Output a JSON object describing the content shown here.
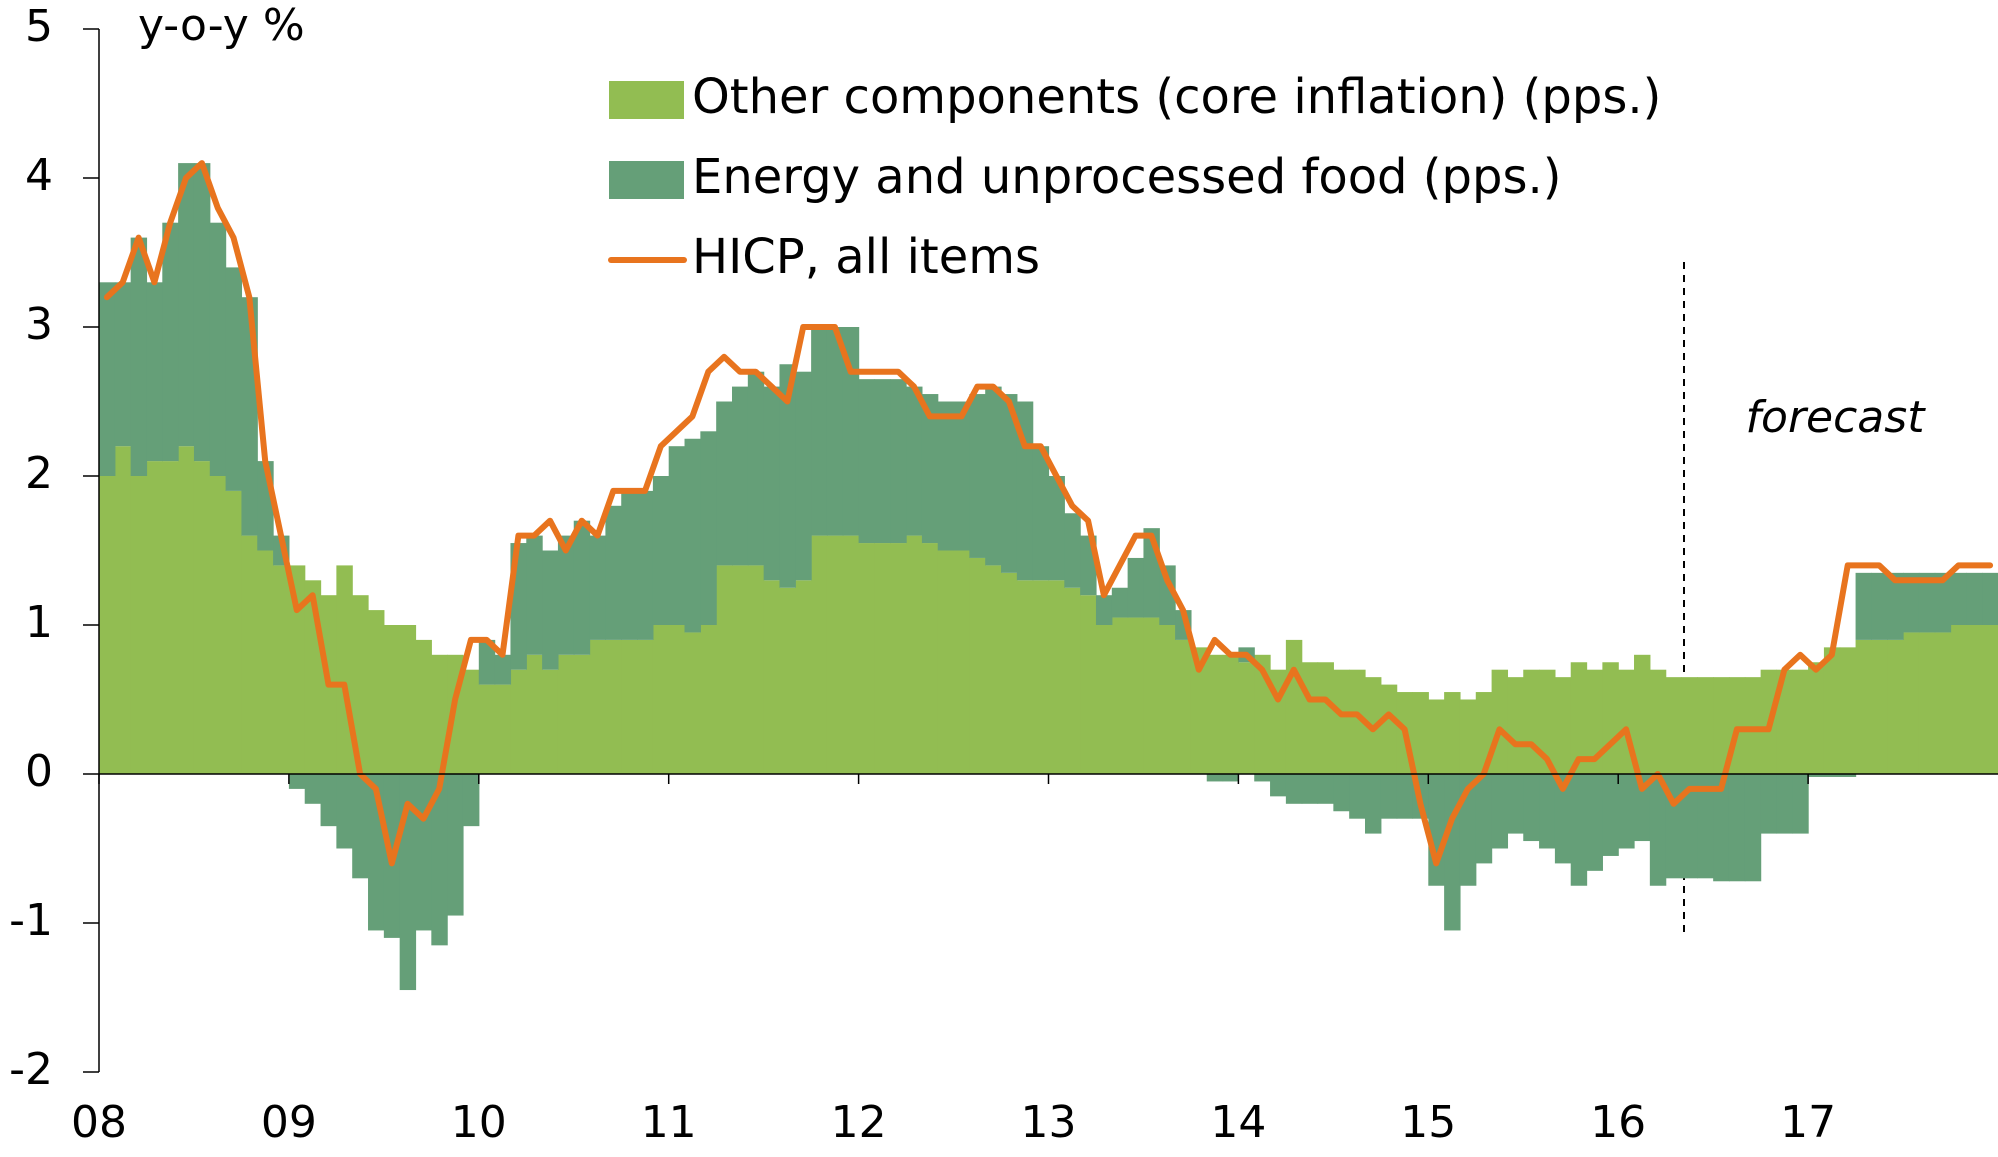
{
  "chart_data": {
    "type": "bar",
    "unit_label": "y-o-y %",
    "annotations": [
      "forecast"
    ],
    "categories": [
      "08",
      null,
      null,
      null,
      null,
      null,
      null,
      null,
      null,
      null,
      null,
      null,
      "09",
      null,
      null,
      null,
      null,
      null,
      null,
      null,
      null,
      null,
      null,
      null,
      "10",
      null,
      null,
      null,
      null,
      null,
      null,
      null,
      null,
      null,
      null,
      null,
      "11",
      null,
      null,
      null,
      null,
      null,
      null,
      null,
      null,
      null,
      null,
      null,
      "12",
      null,
      null,
      null,
      null,
      null,
      null,
      null,
      null,
      null,
      null,
      null,
      "13",
      null,
      null,
      null,
      null,
      null,
      null,
      null,
      null,
      null,
      null,
      null,
      "14",
      null,
      null,
      null,
      null,
      null,
      null,
      null,
      null,
      null,
      null,
      null,
      "15",
      null,
      null,
      null,
      null,
      null,
      null,
      null,
      null,
      null,
      null,
      null,
      "16",
      null,
      null,
      null,
      null,
      null,
      null,
      null,
      null,
      null,
      null,
      null,
      "17",
      null,
      null,
      null,
      null,
      null,
      null,
      null,
      null,
      null,
      null,
      null
    ],
    "series": [
      {
        "name": "Other components (core inflation) (pps.)",
        "color": "#92bd52",
        "kind": "bar",
        "values": [
          2.0,
          2.2,
          2.0,
          2.1,
          2.1,
          2.2,
          2.1,
          2.0,
          1.9,
          1.6,
          1.5,
          1.4,
          1.4,
          1.3,
          1.2,
          1.4,
          1.2,
          1.1,
          1.0,
          1.0,
          0.9,
          0.8,
          0.8,
          0.7,
          0.6,
          0.6,
          0.7,
          0.8,
          0.7,
          0.8,
          0.8,
          0.9,
          0.9,
          0.9,
          0.9,
          1.0,
          1.0,
          0.95,
          1.0,
          1.4,
          1.4,
          1.4,
          1.3,
          1.25,
          1.3,
          1.6,
          1.6,
          1.6,
          1.55,
          1.55,
          1.55,
          1.6,
          1.55,
          1.5,
          1.5,
          1.45,
          1.4,
          1.35,
          1.3,
          1.3,
          1.3,
          1.25,
          1.2,
          1.0,
          1.05,
          1.05,
          1.05,
          1.0,
          0.9,
          0.85,
          0.8,
          0.8,
          0.75,
          0.8,
          0.7,
          0.9,
          0.75,
          0.75,
          0.7,
          0.7,
          0.65,
          0.6,
          0.55,
          0.55,
          0.5,
          0.55,
          0.5,
          0.55,
          0.7,
          0.65,
          0.7,
          0.7,
          0.65,
          0.75,
          0.7,
          0.75,
          0.7,
          0.8,
          0.7,
          0.65,
          0.65,
          0.65,
          0.65,
          0.65,
          0.65,
          0.7,
          0.7,
          0.7,
          0.75,
          0.85,
          0.85,
          0.9,
          0.9,
          0.9,
          0.95,
          0.95,
          0.95,
          1.0,
          1.0,
          1.0
        ]
      },
      {
        "name": "Energy and unprocessed food (pps.)",
        "color": "#659f78",
        "kind": "bar",
        "values": [
          1.3,
          1.1,
          1.6,
          1.2,
          1.6,
          1.9,
          2.0,
          1.7,
          1.5,
          1.6,
          0.6,
          0.2,
          -0.1,
          -0.2,
          -0.35,
          -0.5,
          -0.7,
          -1.05,
          -1.1,
          -1.45,
          -1.05,
          -1.15,
          -0.95,
          -0.35,
          0.3,
          0.2,
          0.85,
          0.8,
          0.8,
          0.8,
          0.9,
          0.7,
          0.9,
          1.0,
          1.0,
          1.0,
          1.2,
          1.3,
          1.3,
          1.1,
          1.2,
          1.3,
          1.3,
          1.5,
          1.4,
          1.4,
          1.4,
          1.4,
          1.1,
          1.1,
          1.1,
          1.0,
          1.0,
          1.0,
          1.0,
          1.1,
          1.2,
          1.2,
          1.2,
          0.9,
          0.7,
          0.5,
          0.4,
          0.2,
          0.2,
          0.4,
          0.6,
          0.4,
          0.2,
          0.0,
          -0.05,
          -0.05,
          0.1,
          -0.05,
          -0.15,
          -0.2,
          -0.2,
          -0.2,
          -0.25,
          -0.3,
          -0.4,
          -0.3,
          -0.3,
          -0.3,
          -0.75,
          -1.05,
          -0.75,
          -0.6,
          -0.5,
          -0.4,
          -0.45,
          -0.5,
          -0.6,
          -0.75,
          -0.65,
          -0.55,
          -0.5,
          -0.45,
          -0.75,
          -0.7,
          -0.7,
          -0.7,
          -0.72,
          -0.72,
          -0.72,
          -0.4,
          -0.4,
          -0.4,
          -0.02,
          -0.02,
          -0.02,
          0.45,
          0.45,
          0.45,
          0.4,
          0.4,
          0.4,
          0.35,
          0.35,
          0.35
        ]
      },
      {
        "name": "HICP, all items",
        "color": "#e8741e",
        "kind": "line",
        "values": [
          3.2,
          3.3,
          3.6,
          3.3,
          3.7,
          4.0,
          4.1,
          3.8,
          3.6,
          3.2,
          2.1,
          1.6,
          1.1,
          1.2,
          0.6,
          0.6,
          0.0,
          -0.1,
          -0.6,
          -0.2,
          -0.3,
          -0.1,
          0.5,
          0.9,
          0.9,
          0.8,
          1.6,
          1.6,
          1.7,
          1.5,
          1.7,
          1.6,
          1.9,
          1.9,
          1.9,
          2.2,
          2.3,
          2.4,
          2.7,
          2.8,
          2.7,
          2.7,
          2.6,
          2.5,
          3.0,
          3.0,
          3.0,
          2.7,
          2.7,
          2.7,
          2.7,
          2.6,
          2.4,
          2.4,
          2.4,
          2.6,
          2.6,
          2.5,
          2.2,
          2.2,
          2.0,
          1.8,
          1.7,
          1.2,
          1.4,
          1.6,
          1.6,
          1.3,
          1.1,
          0.7,
          0.9,
          0.8,
          0.8,
          0.7,
          0.5,
          0.7,
          0.5,
          0.5,
          0.4,
          0.4,
          0.3,
          0.4,
          0.3,
          -0.2,
          -0.6,
          -0.3,
          -0.1,
          0.0,
          0.3,
          0.2,
          0.2,
          0.1,
          -0.1,
          0.1,
          0.1,
          0.2,
          0.3,
          -0.1,
          0.0,
          -0.2,
          -0.1,
          -0.1,
          -0.1,
          0.3,
          0.3,
          0.3,
          0.7,
          0.8,
          0.7,
          0.8,
          1.4,
          1.4,
          1.4,
          1.3,
          1.3,
          1.3,
          1.3,
          1.4,
          1.4,
          1.4
        ]
      }
    ],
    "ylim": [
      -2,
      5
    ],
    "yticks": [
      -2,
      -1,
      0,
      1,
      2,
      3,
      4,
      5
    ],
    "grid": false
  }
}
